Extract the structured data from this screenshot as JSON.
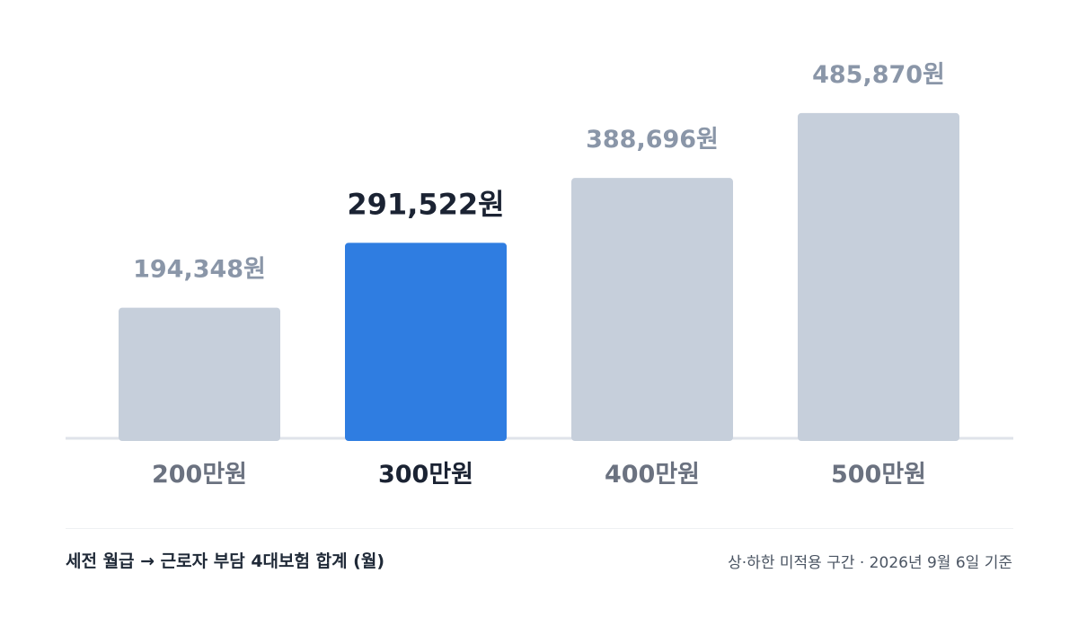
{
  "chart_data": {
    "type": "bar",
    "categories": [
      "200만원",
      "300만원",
      "400만원",
      "500만원"
    ],
    "values": [
      194348,
      291522,
      388696,
      485870
    ],
    "value_labels": [
      "194,348원",
      "291,522원",
      "388,696원",
      "485,870원"
    ],
    "highlight_index": 1,
    "ylim": [
      0,
      510000
    ],
    "grid": false,
    "colors": {
      "bar": "#c6cfdb",
      "bar_highlight": "#2f7de1",
      "label": "#8a96a8",
      "label_highlight": "#1b2333",
      "category": "#6b7280",
      "category_highlight": "#1b2333",
      "baseline": "#dfe3ea"
    }
  },
  "footer": {
    "left": "세전 월급 → 근로자 부담 4대보험 합계 (월)",
    "right": "상·하한 미적용 구간 · 2026년 9월 6일 기준"
  }
}
